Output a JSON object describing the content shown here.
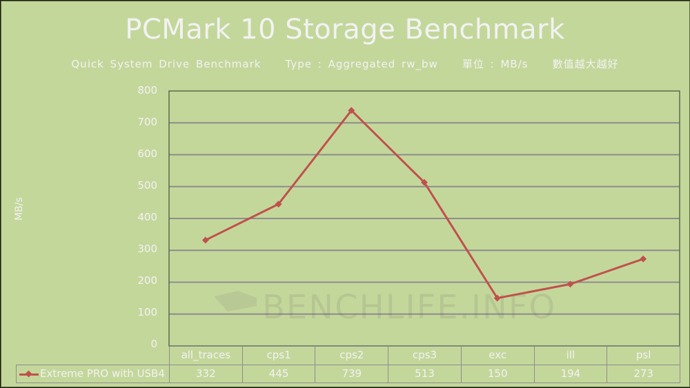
{
  "title": "PCMark 10 Storage Benchmark",
  "subtitle": "Quick System Drive Benchmark    Type : Aggregated rw_bw    單位 : MB/s    數值越大越好",
  "watermark": "BENCHLIFE.INFO",
  "colors": {
    "background": "#c4d79b",
    "series": "#c0504d",
    "text": "#f2f2f2",
    "grid": "#8c8c8c"
  },
  "chart_data": {
    "type": "line",
    "title": "PCMark 10 Storage Benchmark",
    "subtitle": "Quick System Drive Benchmark Type : Aggregated rw_bw 單位 : MB/s 數值越大越好",
    "xlabel": "",
    "ylabel": "MB/s",
    "ylim": [
      0,
      800
    ],
    "yticks": [
      0,
      100,
      200,
      300,
      400,
      500,
      600,
      700,
      800
    ],
    "grid": true,
    "legend_position": "bottom-table",
    "categories": [
      "all_traces",
      "cps1",
      "cps2",
      "cps3",
      "exc",
      "ill",
      "psl"
    ],
    "series": [
      {
        "name": "Extreme PRO with USB4",
        "values": [
          332,
          445,
          739,
          513,
          150,
          194,
          273
        ],
        "color": "#c0504d",
        "marker": "diamond"
      }
    ]
  },
  "yaxis": {
    "label": "MB/s",
    "ticks": [
      "800",
      "700",
      "600",
      "500",
      "400",
      "300",
      "200",
      "100",
      "0"
    ]
  },
  "table": {
    "headers": [
      "all_traces",
      "cps1",
      "cps2",
      "cps3",
      "exc",
      "ill",
      "psl"
    ],
    "legend_label": "Extreme PRO with USB4",
    "values": [
      "332",
      "445",
      "739",
      "513",
      "150",
      "194",
      "273"
    ]
  }
}
